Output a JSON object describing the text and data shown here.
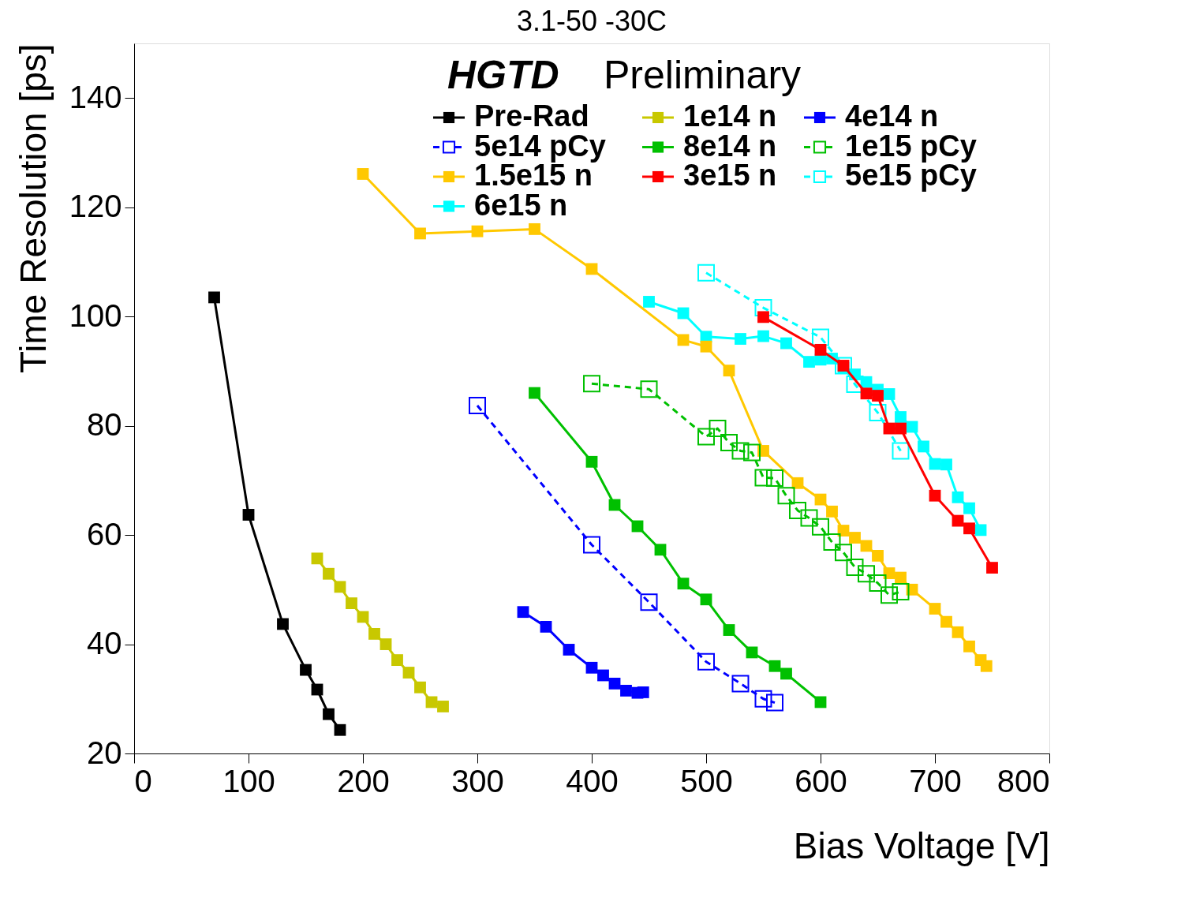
{
  "chart_data": {
    "type": "line",
    "title": "3.1-50 -30C",
    "xlabel": "Bias Voltage [V]",
    "ylabel": "Time Resolution [ps]",
    "xlim": [
      0,
      800
    ],
    "xticks": [
      0,
      100,
      200,
      300,
      400,
      500,
      600,
      700,
      800
    ],
    "ylim": [
      20,
      150
    ],
    "yticks": [
      20,
      40,
      60,
      80,
      100,
      120,
      140
    ],
    "grid": false,
    "legend": "top",
    "marker": "square",
    "annotations": [
      "HGTD",
      "Preliminary"
    ],
    "series": [
      {
        "name": "Pre-Rad",
        "color": "#000000",
        "line_style": "solid",
        "x": [
          70,
          100,
          130,
          150,
          160,
          170,
          180
        ],
        "values": [
          103.5,
          63.7,
          43.7,
          35.3,
          31.7,
          27.2,
          24.3
        ]
      },
      {
        "name": "1e14 n",
        "color": "#c8c800",
        "line_style": "solid",
        "x": [
          160,
          170,
          180,
          190,
          200,
          210,
          220,
          230,
          240,
          250,
          260,
          270
        ],
        "values": [
          55.7,
          52.9,
          50.5,
          47.5,
          45.0,
          41.9,
          40.0,
          37.1,
          34.8,
          32.1,
          29.4,
          28.6
        ]
      },
      {
        "name": "4e14 n",
        "color": "#0000ff",
        "line_style": "solid",
        "x": [
          340,
          360,
          380,
          400,
          410,
          420,
          430,
          440,
          445
        ],
        "values": [
          45.9,
          43.2,
          39.0,
          35.7,
          34.3,
          32.8,
          31.5,
          31.1,
          31.2
        ]
      },
      {
        "name": "5e14 pCy",
        "color": "#0000ff",
        "line_style": "dashed",
        "x": [
          300,
          400,
          450,
          500,
          530,
          550,
          560
        ],
        "values": [
          83.7,
          58.2,
          47.7,
          36.8,
          32.8,
          30.0,
          29.3
        ]
      },
      {
        "name": "8e14 n",
        "color": "#00c000",
        "line_style": "solid",
        "x": [
          350,
          400,
          420,
          440,
          460,
          480,
          500,
          520,
          540,
          560,
          570,
          600
        ],
        "values": [
          86.0,
          73.4,
          65.5,
          61.6,
          57.3,
          51.1,
          48.2,
          42.6,
          38.5,
          36.0,
          34.6,
          29.4
        ]
      },
      {
        "name": "1e15 pCy",
        "color": "#00c000",
        "line_style": "dashed",
        "x": [
          400,
          450,
          500,
          510,
          520,
          530,
          540,
          550,
          560,
          570,
          580,
          590,
          600,
          610,
          620,
          630,
          640,
          650,
          660,
          670
        ],
        "values": [
          87.7,
          86.7,
          78.0,
          79.5,
          76.9,
          75.4,
          75.1,
          70.5,
          70.4,
          67.2,
          64.5,
          63.1,
          61.5,
          58.7,
          56.8,
          54.1,
          52.9,
          51.2,
          49.0,
          49.6
        ]
      },
      {
        "name": "1.5e15 n",
        "color": "#ffc800",
        "line_style": "solid",
        "x": [
          200,
          250,
          300,
          350,
          400,
          480,
          500,
          520,
          550,
          580,
          600,
          610,
          620,
          630,
          640,
          650,
          660,
          670,
          680,
          700,
          710,
          720,
          730,
          740,
          745
        ],
        "values": [
          126.1,
          115.2,
          115.6,
          116.0,
          108.7,
          95.7,
          94.5,
          90.1,
          75.4,
          69.5,
          66.5,
          64.3,
          60.8,
          59.5,
          58.0,
          56.2,
          53.0,
          52.2,
          50.0,
          46.5,
          44.1,
          42.2,
          39.6,
          37.1,
          36.0
        ]
      },
      {
        "name": "3e15 n",
        "color": "#ff0000",
        "line_style": "solid",
        "x": [
          550,
          600,
          620,
          640,
          650,
          660,
          670,
          700,
          720,
          730,
          750
        ],
        "values": [
          99.9,
          93.9,
          91.0,
          85.9,
          85.5,
          79.5,
          79.5,
          67.2,
          62.6,
          61.2,
          54.0
        ]
      },
      {
        "name": "5e15 pCy",
        "color": "#00ffff",
        "line_style": "dashed",
        "x": [
          500,
          550,
          600,
          620,
          630,
          650,
          670
        ],
        "values": [
          108.0,
          101.6,
          96.2,
          91.0,
          87.6,
          82.4,
          75.4
        ]
      },
      {
        "name": "6e15 n",
        "color": "#00ffff",
        "line_style": "solid",
        "x": [
          450,
          480,
          500,
          530,
          550,
          570,
          590,
          600,
          610,
          620,
          630,
          640,
          650,
          660,
          670,
          680,
          690,
          700,
          710,
          720,
          730,
          740
        ],
        "values": [
          102.7,
          100.6,
          96.3,
          95.9,
          96.4,
          95.1,
          91.7,
          92.1,
          92.3,
          90.6,
          89.4,
          88.0,
          86.6,
          85.8,
          81.6,
          79.8,
          76.2,
          73.0,
          72.9,
          66.9,
          64.9,
          60.9
        ]
      }
    ]
  }
}
